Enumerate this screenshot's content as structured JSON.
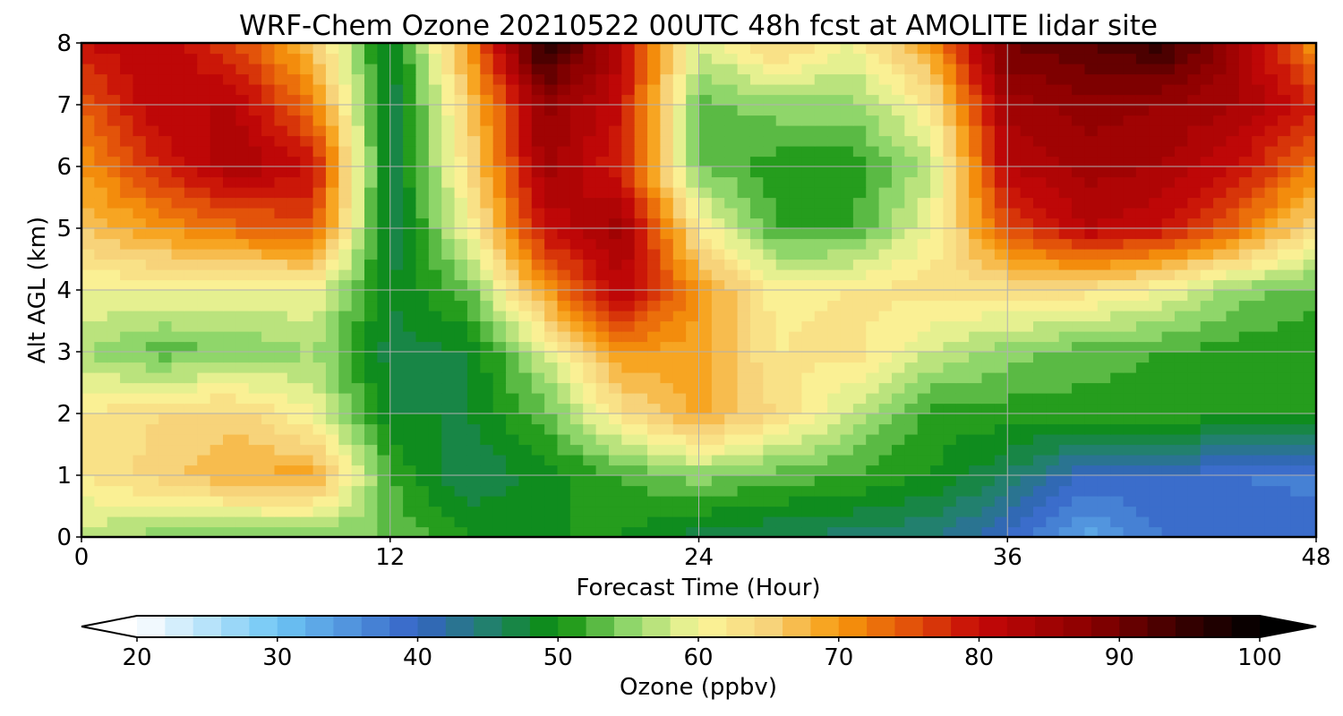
{
  "chart_data": {
    "type": "heatmap",
    "title": "WRF-Chem Ozone  20210522 00UTC 48h fcst at AMOLITE lidar site",
    "xlabel": "Forecast Time (Hour)",
    "ylabel": "Alt AGL (km)",
    "xlim": [
      0,
      48
    ],
    "ylim": [
      0,
      8
    ],
    "x_ticks": [
      "0",
      "12",
      "24",
      "36",
      "48"
    ],
    "y_ticks": [
      "0",
      "1",
      "2",
      "3",
      "4",
      "5",
      "6",
      "7",
      "8"
    ],
    "grid": true,
    "x": [
      0,
      3,
      6,
      9,
      12,
      15,
      18,
      21,
      24,
      27,
      30,
      33,
      36,
      39,
      42,
      45,
      48
    ],
    "y": [
      0,
      1,
      2,
      3,
      4,
      5,
      6,
      7,
      8
    ],
    "z": [
      [
        57,
        55,
        54,
        54,
        54,
        50,
        50,
        50,
        47,
        46,
        45,
        44,
        40,
        33,
        38,
        40,
        40
      ],
      [
        62,
        65,
        68,
        69,
        52,
        46,
        49,
        52,
        55,
        53,
        52,
        50,
        46,
        40,
        40,
        38,
        37
      ],
      [
        62,
        64,
        65,
        60,
        48,
        48,
        53,
        63,
        69,
        64,
        57,
        51,
        51,
        51,
        51,
        51,
        51
      ],
      [
        56,
        53,
        54,
        56,
        47,
        48,
        58,
        70,
        69,
        62,
        63,
        58,
        55,
        53,
        52,
        51,
        50
      ],
      [
        60,
        60,
        60,
        60,
        48,
        53,
        70,
        82,
        70,
        61,
        62,
        63,
        63,
        63,
        60,
        55,
        53
      ],
      [
        66,
        70,
        73,
        75,
        46,
        60,
        80,
        85,
        62,
        52,
        52,
        60,
        75,
        82,
        80,
        73,
        63
      ],
      [
        70,
        78,
        84,
        80,
        46,
        63,
        85,
        78,
        54,
        51,
        51,
        57,
        82,
        85,
        84,
        80,
        72
      ],
      [
        74,
        82,
        82,
        72,
        46,
        65,
        87,
        80,
        53,
        55,
        55,
        62,
        85,
        87,
        86,
        84,
        78
      ],
      [
        80,
        82,
        76,
        66,
        47,
        70,
        97,
        82,
        58,
        65,
        60,
        70,
        90,
        92,
        95,
        85,
        70
      ]
    ],
    "colorbar": {
      "label": "Ozone  (ppbv)",
      "min": 20,
      "max": 100,
      "step": 2,
      "extend": "both",
      "ticks": [
        "20",
        "30",
        "40",
        "50",
        "60",
        "70",
        "80",
        "90",
        "100"
      ],
      "stops": [
        [
          20,
          "#ffffff"
        ],
        [
          30,
          "#6ec6f5"
        ],
        [
          40,
          "#3563c6"
        ],
        [
          45,
          "#22806e"
        ],
        [
          50,
          "#0a8f0a"
        ],
        [
          55,
          "#8fd66a"
        ],
        [
          60,
          "#fbf79a"
        ],
        [
          65,
          "#f7d37a"
        ],
        [
          70,
          "#f79a0c"
        ],
        [
          75,
          "#e3530a"
        ],
        [
          80,
          "#c50808"
        ],
        [
          88,
          "#8a0000"
        ],
        [
          95,
          "#330000"
        ],
        [
          100,
          "#000000"
        ]
      ]
    }
  }
}
